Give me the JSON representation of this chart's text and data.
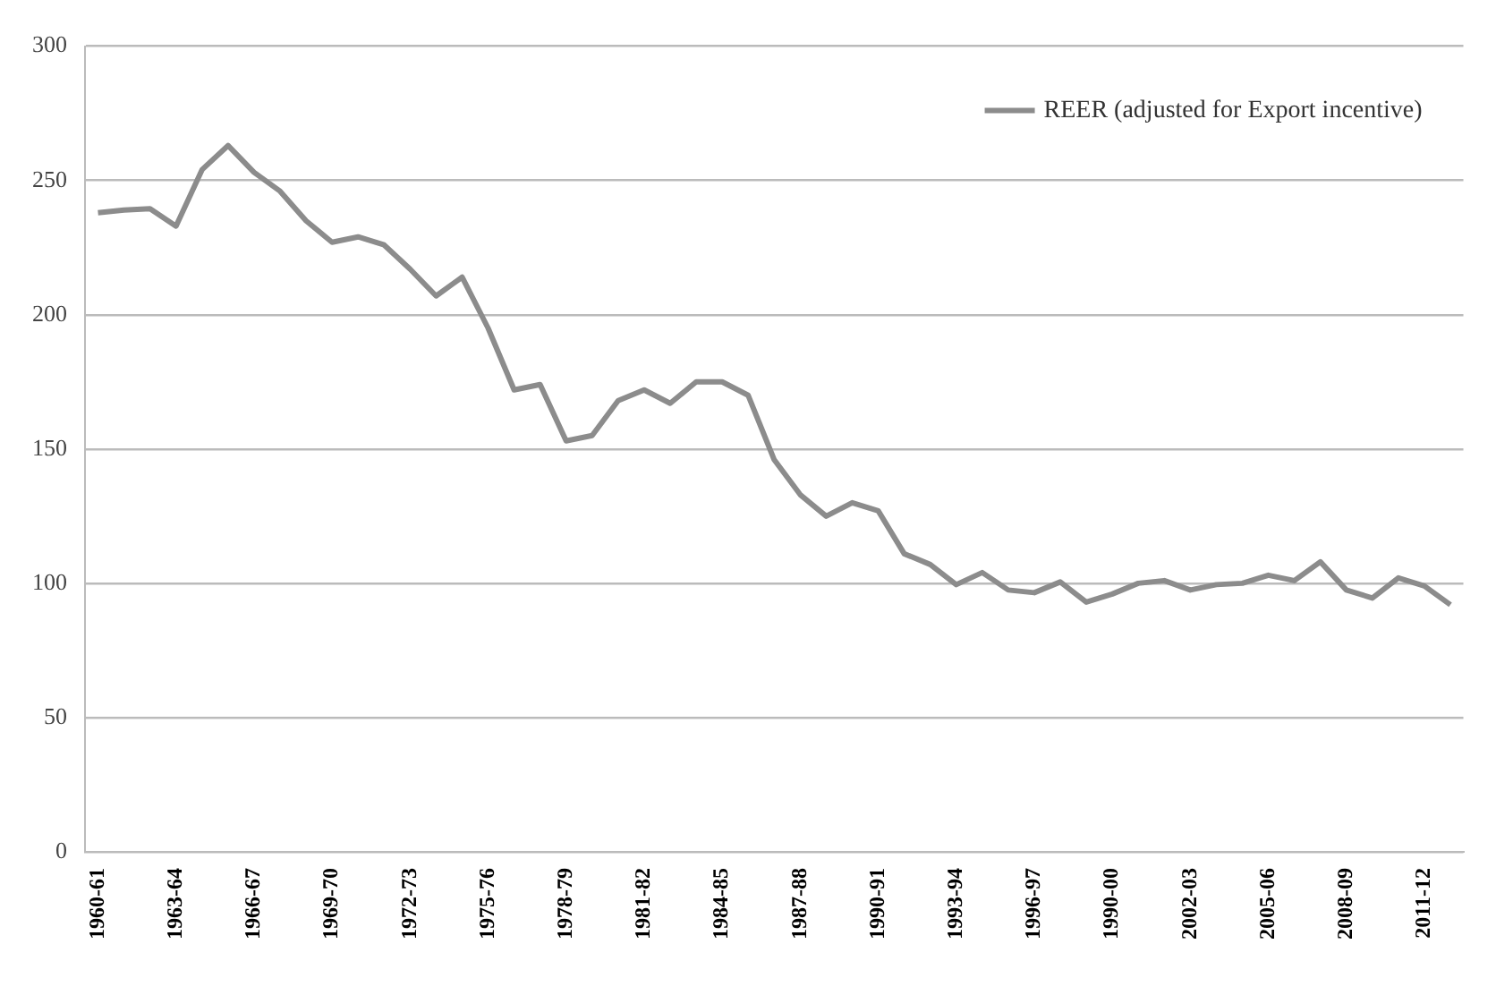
{
  "chart_data": {
    "type": "line",
    "categories": [
      "1960-61",
      null,
      null,
      "1963-64",
      null,
      null,
      "1966-67",
      null,
      null,
      "1969-70",
      null,
      null,
      "1972-73",
      null,
      null,
      "1975-76",
      null,
      null,
      "1978-79",
      null,
      null,
      "1981-82",
      null,
      null,
      "1984-85",
      null,
      null,
      "1987-88",
      null,
      null,
      "1990-91",
      null,
      null,
      "1993-94",
      null,
      null,
      "1996-97",
      null,
      null,
      "1990-00",
      null,
      null,
      "2002-03",
      null,
      null,
      "2005-06",
      null,
      null,
      "2008-09",
      null,
      null,
      "2011-12",
      null
    ],
    "series": [
      {
        "name": "REER (adjusted for Export incentive)",
        "color": "#8c8c8c",
        "values": [
          238,
          239,
          239.5,
          233,
          254,
          263,
          253,
          246,
          235,
          227,
          229,
          226,
          217,
          207,
          214,
          195,
          172,
          174,
          153,
          155,
          168,
          172,
          167,
          175,
          175,
          170,
          146,
          133,
          125,
          130,
          127,
          111,
          107,
          99.5,
          104,
          97.5,
          96.5,
          100.5,
          93,
          96,
          100,
          101,
          97.5,
          99.5,
          100,
          103,
          101,
          108,
          97.5,
          94.5,
          102,
          99,
          92
        ]
      }
    ],
    "ylim": [
      0,
      300
    ],
    "yticks": [
      0,
      50,
      100,
      150,
      200,
      250,
      300
    ],
    "grid": "y",
    "legend": "top right",
    "marker": "none",
    "line_style": "solid"
  }
}
